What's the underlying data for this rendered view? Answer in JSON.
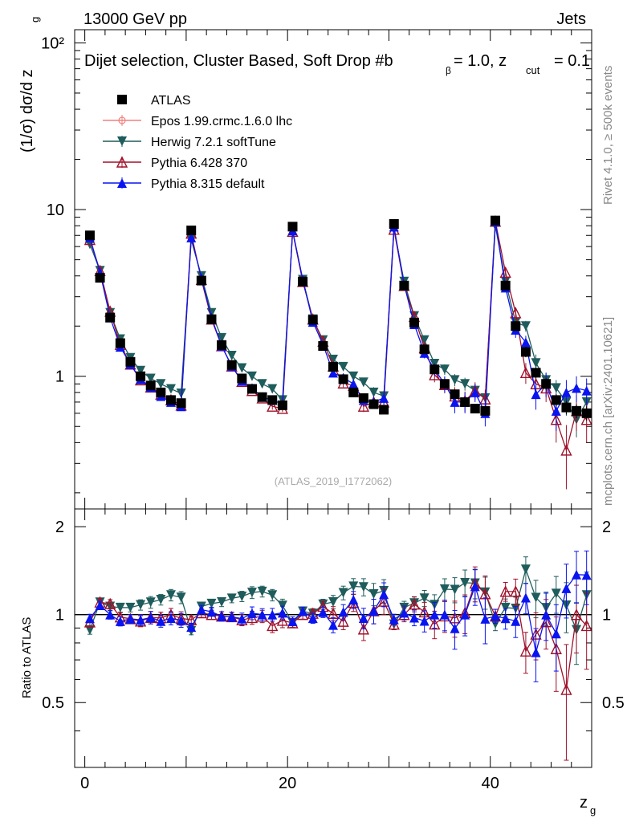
{
  "header": {
    "left": "13000 GeV pp",
    "right": "Jets",
    "rivet": "Rivet 4.1.0, ≥ 500k events",
    "mcplots": "mcplots.cern.ch [arXiv:2401.10621]"
  },
  "colors": {
    "atlas": "#000000",
    "epos": "#f08080",
    "herwig": "#1f5c5c",
    "pythia6": "#a0102a",
    "pythia8": "#0a14f0"
  },
  "chart_data": {
    "type": "scatter",
    "title": "Dijet selection, Cluster Based, Soft Drop #b",
    "title_suffix": "= 1.0, z",
    "title_sub_beta": "β",
    "title_sub_cut": "cut",
    "title_end": "= 0.1",
    "analysis_id": "(ATLAS_2019_I1772062)",
    "xlabel": "z",
    "xlabel_sub": "g",
    "ylabel": "(1/σ) dσ/d z",
    "ylabel_sub": "g",
    "ratio_ylabel": "Ratio to ATLAS",
    "xlim": [
      -1,
      50
    ],
    "ylim": [
      0.16,
      120
    ],
    "ratio_ylim": [
      0.3,
      2.3
    ],
    "x_ticks": [
      "0",
      "20",
      "40"
    ],
    "y_ticks": [
      "1",
      "10",
      "10²"
    ],
    "ratio_ticks": [
      "0.5",
      "1",
      "2"
    ],
    "x": [
      0.5,
      1.5,
      2.5,
      3.5,
      4.5,
      5.5,
      6.5,
      7.5,
      8.5,
      9.5,
      10.5,
      11.5,
      12.5,
      13.5,
      14.5,
      15.5,
      16.5,
      17.5,
      18.5,
      19.5,
      20.5,
      21.5,
      22.5,
      23.5,
      24.5,
      25.5,
      26.5,
      27.5,
      28.5,
      29.5,
      30.5,
      31.5,
      32.5,
      33.5,
      34.5,
      35.5,
      36.5,
      37.5,
      38.5,
      39.5,
      40.5,
      41.5,
      42.5,
      43.5,
      44.5,
      45.5,
      46.5,
      47.5,
      48.5,
      49.5
    ],
    "series": [
      {
        "name": "ATLAS",
        "style": "square",
        "values": [
          7.0,
          3.9,
          2.25,
          1.58,
          1.22,
          1.0,
          0.88,
          0.8,
          0.72,
          0.69,
          7.5,
          3.75,
          2.2,
          1.54,
          1.17,
          0.97,
          0.84,
          0.75,
          0.72,
          0.67,
          7.9,
          3.7,
          2.18,
          1.52,
          1.14,
          0.96,
          0.8,
          0.74,
          0.68,
          0.63,
          8.2,
          3.5,
          2.1,
          1.45,
          1.1,
          0.9,
          0.78,
          0.7,
          0.64,
          0.62,
          8.6,
          3.5,
          2.0,
          1.4,
          1.05,
          0.9,
          0.72,
          0.65,
          0.62,
          0.6
        ],
        "errors": [
          0.2,
          0.1,
          0.06,
          0.04,
          0.03,
          0.03,
          0.03,
          0.02,
          0.02,
          0.02,
          0.2,
          0.1,
          0.06,
          0.04,
          0.03,
          0.03,
          0.03,
          0.02,
          0.02,
          0.02,
          0.25,
          0.1,
          0.06,
          0.04,
          0.04,
          0.03,
          0.03,
          0.03,
          0.03,
          0.03,
          0.3,
          0.15,
          0.08,
          0.06,
          0.05,
          0.04,
          0.04,
          0.04,
          0.04,
          0.04,
          0.4,
          0.2,
          0.12,
          0.1,
          0.08,
          0.07,
          0.06,
          0.06,
          0.06,
          0.06
        ]
      },
      {
        "name": "Epos 1.99.crmc.1.6.0 lhc",
        "style": "open-circle-cross",
        "values": []
      },
      {
        "name": "Herwig 7.2.1 softTune",
        "style": "triangle-down",
        "values": [
          6.2,
          4.3,
          2.4,
          1.67,
          1.29,
          1.08,
          0.97,
          0.9,
          0.84,
          0.79,
          6.6,
          4.0,
          2.4,
          1.7,
          1.33,
          1.12,
          1.0,
          0.9,
          0.84,
          0.72,
          7.4,
          3.8,
          2.2,
          1.65,
          1.26,
          1.14,
          1.0,
          0.92,
          0.8,
          0.76,
          7.6,
          3.7,
          2.3,
          1.65,
          1.19,
          1.1,
          0.95,
          0.9,
          0.82,
          0.74,
          8.0,
          3.7,
          2.1,
          2.0,
          1.2,
          0.95,
          0.85,
          0.7,
          0.55,
          0.7
        ],
        "errors": [
          0.1,
          0.08,
          0.05,
          0.04,
          0.03,
          0.03,
          0.03,
          0.03,
          0.03,
          0.03,
          0.1,
          0.08,
          0.05,
          0.04,
          0.03,
          0.03,
          0.03,
          0.03,
          0.03,
          0.03,
          0.12,
          0.08,
          0.05,
          0.05,
          0.05,
          0.05,
          0.05,
          0.05,
          0.06,
          0.06,
          0.15,
          0.1,
          0.08,
          0.08,
          0.08,
          0.08,
          0.08,
          0.08,
          0.08,
          0.08,
          0.2,
          0.15,
          0.15,
          0.15,
          0.15,
          0.1,
          0.1,
          0.12,
          0.12,
          0.12
        ]
      },
      {
        "name": "Pythia 6.428 370",
        "style": "open-triangle-up",
        "values": [
          6.6,
          4.3,
          2.45,
          1.55,
          1.18,
          0.95,
          0.86,
          0.78,
          0.72,
          0.67,
          7.2,
          3.8,
          2.2,
          1.52,
          1.15,
          0.93,
          0.82,
          0.74,
          0.66,
          0.64,
          7.4,
          3.7,
          2.2,
          1.62,
          1.15,
          0.91,
          0.88,
          0.66,
          0.7,
          0.7,
          7.6,
          3.5,
          2.28,
          1.48,
          1.02,
          0.89,
          0.76,
          0.71,
          0.82,
          0.73,
          8.5,
          4.2,
          2.4,
          1.05,
          0.9,
          0.85,
          0.55,
          0.36,
          0.62,
          0.55
        ],
        "errors": [
          0.1,
          0.08,
          0.05,
          0.04,
          0.03,
          0.03,
          0.03,
          0.03,
          0.03,
          0.03,
          0.1,
          0.08,
          0.05,
          0.04,
          0.03,
          0.03,
          0.03,
          0.03,
          0.03,
          0.03,
          0.12,
          0.08,
          0.06,
          0.05,
          0.05,
          0.05,
          0.05,
          0.05,
          0.06,
          0.06,
          0.15,
          0.12,
          0.1,
          0.1,
          0.1,
          0.1,
          0.1,
          0.1,
          0.1,
          0.1,
          0.25,
          0.2,
          0.2,
          0.15,
          0.15,
          0.15,
          0.15,
          0.15,
          0.15,
          0.15
        ]
      },
      {
        "name": "Pythia 8.315 default",
        "style": "triangle-up",
        "values": [
          6.8,
          4.2,
          2.25,
          1.5,
          1.18,
          0.96,
          0.86,
          0.76,
          0.7,
          0.66,
          6.8,
          3.9,
          2.25,
          1.52,
          1.15,
          0.94,
          0.85,
          0.75,
          0.72,
          0.68,
          7.5,
          3.8,
          2.12,
          1.55,
          1.05,
          0.98,
          0.9,
          0.72,
          0.7,
          0.74,
          7.9,
          3.55,
          2.05,
          1.38,
          1.1,
          0.9,
          0.7,
          0.7,
          0.8,
          0.6,
          8.5,
          3.4,
          1.9,
          1.6,
          0.78,
          0.9,
          0.62,
          0.8,
          0.85,
          0.82
        ],
        "errors": [
          0.1,
          0.08,
          0.05,
          0.04,
          0.03,
          0.03,
          0.03,
          0.03,
          0.03,
          0.03,
          0.1,
          0.08,
          0.05,
          0.04,
          0.03,
          0.03,
          0.03,
          0.03,
          0.03,
          0.03,
          0.12,
          0.08,
          0.06,
          0.05,
          0.05,
          0.05,
          0.05,
          0.05,
          0.06,
          0.06,
          0.15,
          0.12,
          0.1,
          0.1,
          0.1,
          0.1,
          0.1,
          0.1,
          0.1,
          0.1,
          0.25,
          0.2,
          0.2,
          0.15,
          0.15,
          0.15,
          0.15,
          0.15,
          0.15,
          0.15
        ]
      }
    ]
  }
}
